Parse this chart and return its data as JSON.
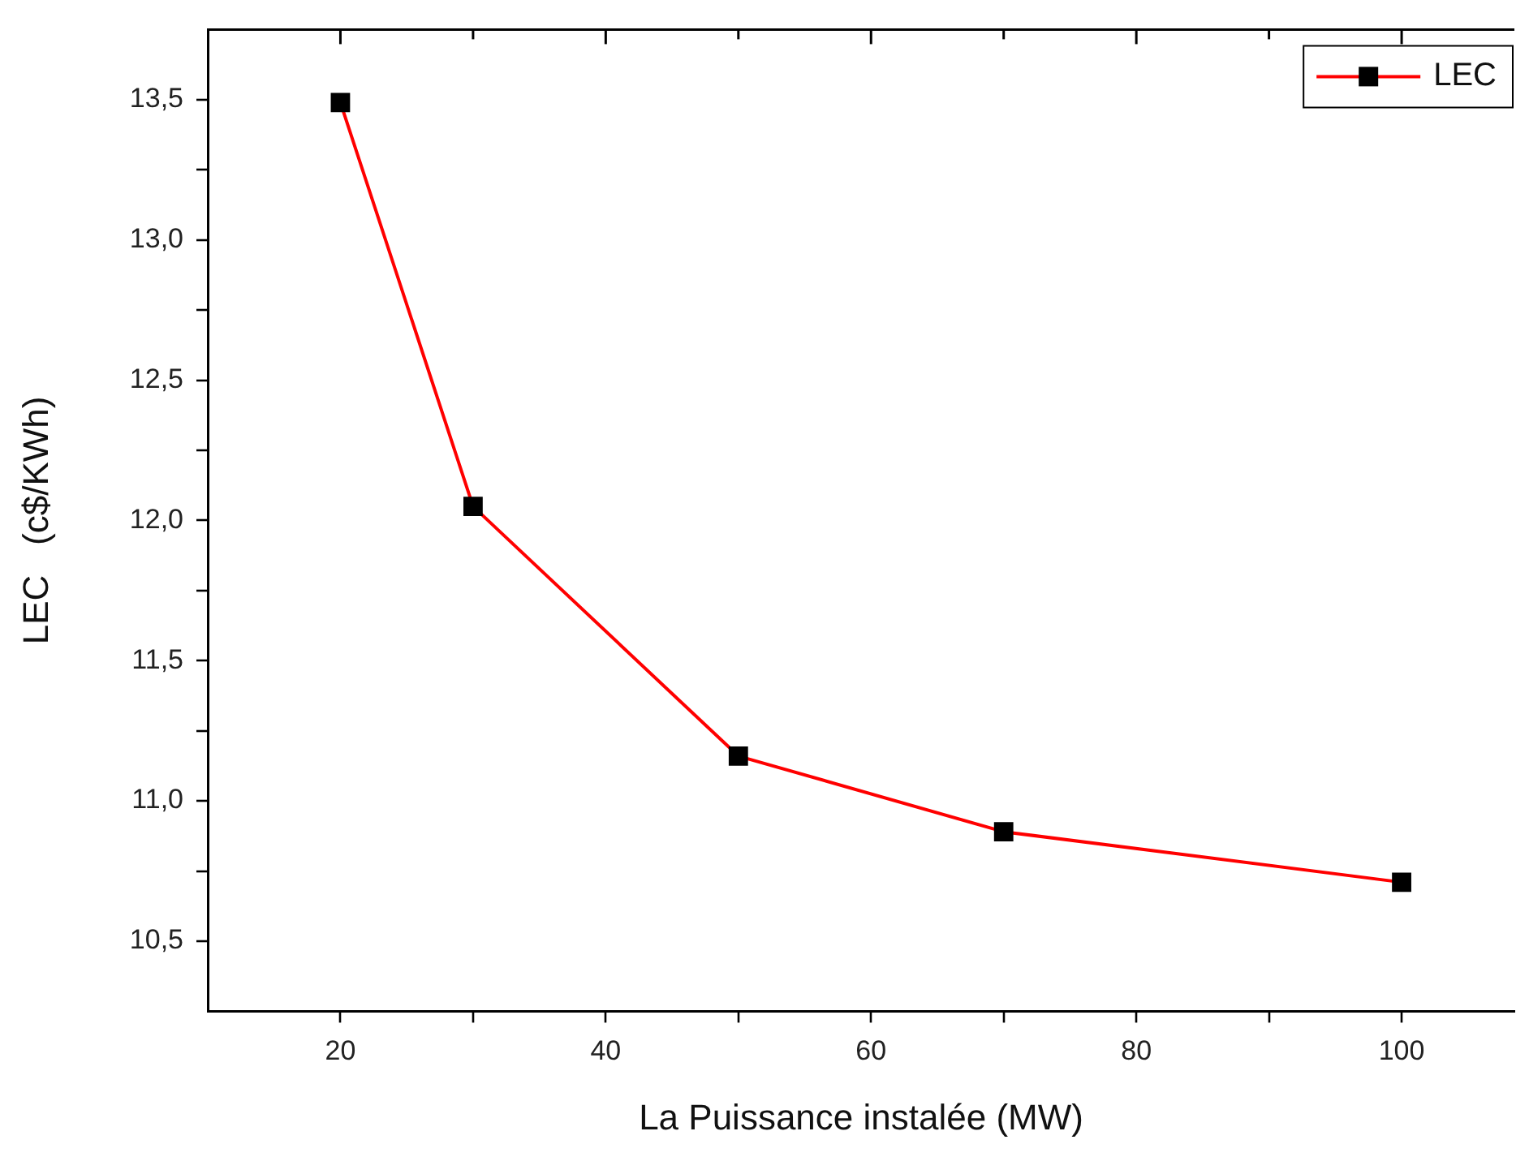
{
  "chart_data": {
    "type": "line",
    "xlabel": "La Puissance instalée (MW)",
    "ylabel": "LEC   (c$/KWh)",
    "x": [
      20,
      30,
      50,
      70,
      100
    ],
    "series": [
      {
        "name": "LEC",
        "color": "#ff0000",
        "values": [
          13.49,
          12.05,
          11.16,
          10.89,
          10.71
        ]
      }
    ],
    "xlim": [
      10,
      108.5
    ],
    "ylim": [
      10.25,
      13.75
    ],
    "xticks": [
      20,
      {
        "value": 30,
        "label": null
      },
      40,
      {
        "value": 50,
        "label": null
      },
      60,
      {
        "value": 70,
        "label": null
      },
      80,
      {
        "value": 90,
        "label": null
      },
      100
    ],
    "yticks": [
      {
        "value": 10.5,
        "label": "10,5"
      },
      {
        "value": 10.75,
        "label": null
      },
      {
        "value": 11,
        "label": "11,0"
      },
      {
        "value": 11.25,
        "label": null
      },
      {
        "value": 11.5,
        "label": "11,5"
      },
      {
        "value": 11.75,
        "label": null
      },
      {
        "value": 12,
        "label": "12,0"
      },
      {
        "value": 12.25,
        "label": null
      },
      {
        "value": 12.5,
        "label": "12,5"
      },
      {
        "value": 12.75,
        "label": null
      },
      {
        "value": 13,
        "label": "13,0"
      },
      {
        "value": 13.25,
        "label": null
      },
      {
        "value": 13.5,
        "label": "13,5"
      }
    ],
    "marker": "square",
    "line_style": "solid",
    "grid": false,
    "legend": "top right"
  }
}
